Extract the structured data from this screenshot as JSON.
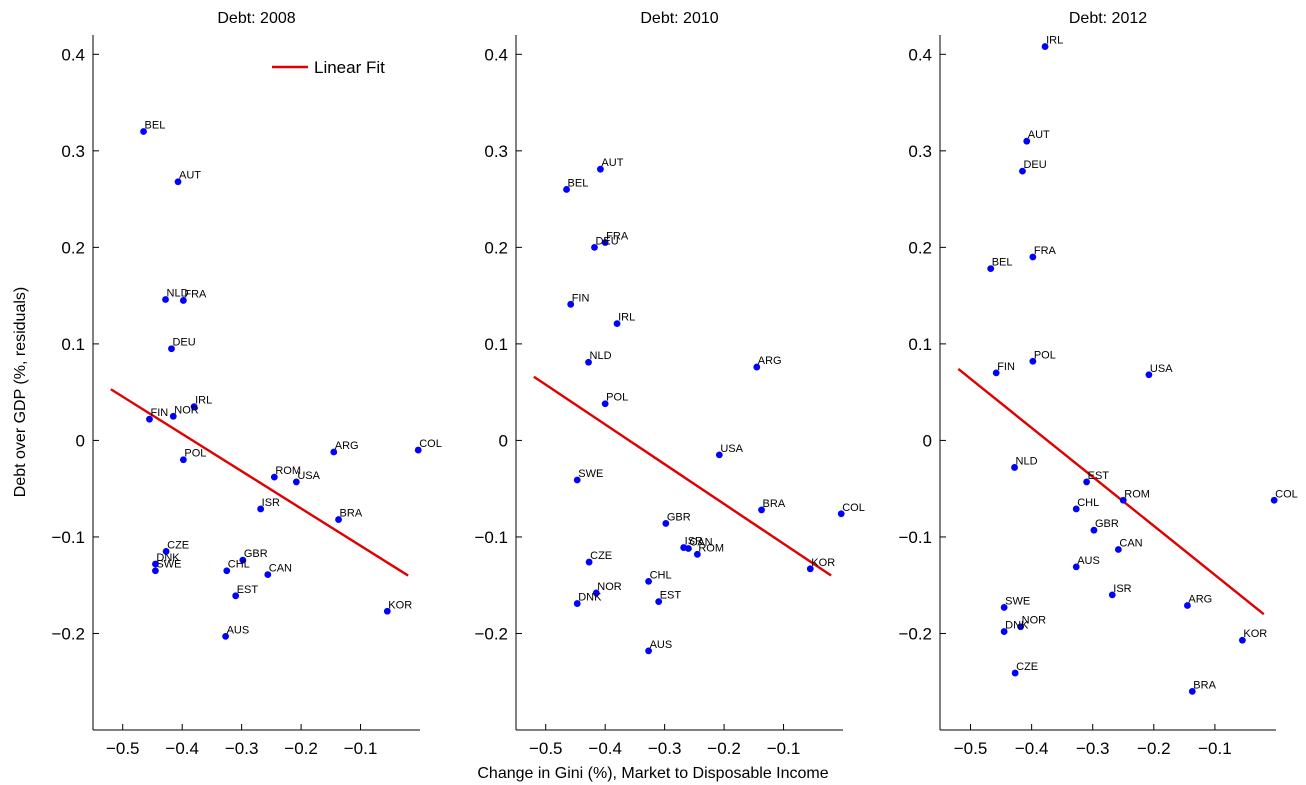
{
  "figure": {
    "ylabel": "Debt over GDP (%, residuals)",
    "xlabel": "Change in Gini (%), Market to Disposable Income",
    "legend_label": "Linear Fit",
    "colors": {
      "points": "#0000ff",
      "fit": "#e00000",
      "axis": "#000000"
    }
  },
  "chart_data": [
    {
      "type": "scatter",
      "title": "Debt: 2008",
      "xlim": [
        -0.55,
        0
      ],
      "ylim": [
        -0.3,
        0.42
      ],
      "xticks": [
        -0.5,
        -0.4,
        -0.3,
        -0.2,
        -0.1
      ],
      "xtick_labels": [
        "−0.5",
        "−0.4",
        "−0.3",
        "−0.2",
        "−0.1"
      ],
      "yticks": [
        -0.2,
        -0.1,
        0,
        0.1,
        0.2,
        0.3,
        0.4
      ],
      "ytick_labels": [
        "−0.2",
        "−0.1",
        "0",
        "0.1",
        "0.2",
        "0.3",
        "0.4"
      ],
      "show_ytick_labels": true,
      "legend": "top-right",
      "fit_line": {
        "x": [
          -0.52,
          -0.02
        ],
        "y": [
          0.053,
          -0.14
        ]
      },
      "points": [
        {
          "label": "BEL",
          "x": -0.465,
          "y": 0.32
        },
        {
          "label": "AUT",
          "x": -0.407,
          "y": 0.268
        },
        {
          "label": "NLD",
          "x": -0.428,
          "y": 0.146
        },
        {
          "label": "FRA",
          "x": -0.398,
          "y": 0.145
        },
        {
          "label": "DEU",
          "x": -0.418,
          "y": 0.095
        },
        {
          "label": "IRL",
          "x": -0.38,
          "y": 0.035
        },
        {
          "label": "NOR",
          "x": -0.415,
          "y": 0.025
        },
        {
          "label": "FIN",
          "x": -0.455,
          "y": 0.022
        },
        {
          "label": "POL",
          "x": -0.398,
          "y": -0.02
        },
        {
          "label": "ARG",
          "x": -0.145,
          "y": -0.012
        },
        {
          "label": "COL",
          "x": -0.003,
          "y": -0.01
        },
        {
          "label": "ROM",
          "x": -0.245,
          "y": -0.038
        },
        {
          "label": "USA",
          "x": -0.208,
          "y": -0.043
        },
        {
          "label": "ISR",
          "x": -0.268,
          "y": -0.071
        },
        {
          "label": "BRA",
          "x": -0.137,
          "y": -0.082
        },
        {
          "label": "CZE",
          "x": -0.427,
          "y": -0.115
        },
        {
          "label": "DNK",
          "x": -0.445,
          "y": -0.128
        },
        {
          "label": "SWE",
          "x": -0.445,
          "y": -0.135
        },
        {
          "label": "GBR",
          "x": -0.298,
          "y": -0.124
        },
        {
          "label": "CHL",
          "x": -0.325,
          "y": -0.135
        },
        {
          "label": "CAN",
          "x": -0.256,
          "y": -0.139
        },
        {
          "label": "EST",
          "x": -0.31,
          "y": -0.161
        },
        {
          "label": "KOR",
          "x": -0.055,
          "y": -0.177
        },
        {
          "label": "AUS",
          "x": -0.327,
          "y": -0.203
        }
      ]
    },
    {
      "type": "scatter",
      "title": "Debt: 2010",
      "xlim": [
        -0.55,
        0
      ],
      "ylim": [
        -0.3,
        0.42
      ],
      "xticks": [
        -0.5,
        -0.4,
        -0.3,
        -0.2,
        -0.1
      ],
      "xtick_labels": [
        "−0.5",
        "−0.4",
        "−0.3",
        "−0.2",
        "−0.1"
      ],
      "yticks": [
        -0.2,
        -0.1,
        0,
        0.1,
        0.2,
        0.3,
        0.4
      ],
      "ytick_labels": [
        "−0.2",
        "−0.1",
        "0",
        "0.1",
        "0.2",
        "0.3",
        "0.4"
      ],
      "show_ytick_labels": true,
      "legend": "",
      "fit_line": {
        "x": [
          -0.52,
          -0.02
        ],
        "y": [
          0.066,
          -0.14
        ]
      },
      "points": [
        {
          "label": "AUT",
          "x": -0.408,
          "y": 0.281
        },
        {
          "label": "BEL",
          "x": -0.465,
          "y": 0.26
        },
        {
          "label": "FRA",
          "x": -0.4,
          "y": 0.205
        },
        {
          "label": "DEU",
          "x": -0.418,
          "y": 0.2
        },
        {
          "label": "FIN",
          "x": -0.458,
          "y": 0.141
        },
        {
          "label": "IRL",
          "x": -0.38,
          "y": 0.121
        },
        {
          "label": "NLD",
          "x": -0.428,
          "y": 0.081
        },
        {
          "label": "ARG",
          "x": -0.145,
          "y": 0.076
        },
        {
          "label": "POL",
          "x": -0.4,
          "y": 0.038
        },
        {
          "label": "USA",
          "x": -0.208,
          "y": -0.015
        },
        {
          "label": "SWE",
          "x": -0.447,
          "y": -0.041
        },
        {
          "label": "BRA",
          "x": -0.137,
          "y": -0.072
        },
        {
          "label": "COL",
          "x": -0.003,
          "y": -0.076
        },
        {
          "label": "GBR",
          "x": -0.298,
          "y": -0.086
        },
        {
          "label": "ISR",
          "x": -0.268,
          "y": -0.111
        },
        {
          "label": "CAN",
          "x": -0.26,
          "y": -0.112
        },
        {
          "label": "ROM",
          "x": -0.245,
          "y": -0.118
        },
        {
          "label": "CZE",
          "x": -0.427,
          "y": -0.126
        },
        {
          "label": "KOR",
          "x": -0.055,
          "y": -0.133
        },
        {
          "label": "CHL",
          "x": -0.327,
          "y": -0.146
        },
        {
          "label": "NOR",
          "x": -0.415,
          "y": -0.158
        },
        {
          "label": "DNK",
          "x": -0.447,
          "y": -0.169
        },
        {
          "label": "EST",
          "x": -0.31,
          "y": -0.167
        },
        {
          "label": "AUS",
          "x": -0.327,
          "y": -0.218
        }
      ]
    },
    {
      "type": "scatter",
      "title": "Debt: 2012",
      "xlim": [
        -0.55,
        0
      ],
      "ylim": [
        -0.3,
        0.42
      ],
      "xticks": [
        -0.5,
        -0.4,
        -0.3,
        -0.2,
        -0.1
      ],
      "xtick_labels": [
        "−0.5",
        "−0.4",
        "−0.3",
        "−0.2",
        "−0.1"
      ],
      "yticks": [
        -0.2,
        -0.1,
        0,
        0.1,
        0.2,
        0.3,
        0.4
      ],
      "ytick_labels": [
        "−0.2",
        "−0.1",
        "0",
        "0.1",
        "0.2",
        "0.3",
        "0.4"
      ],
      "show_ytick_labels": true,
      "legend": "",
      "fit_line": {
        "x": [
          -0.52,
          -0.02
        ],
        "y": [
          0.074,
          -0.18
        ]
      },
      "points": [
        {
          "label": "IRL",
          "x": -0.378,
          "y": 0.408
        },
        {
          "label": "AUT",
          "x": -0.408,
          "y": 0.31
        },
        {
          "label": "DEU",
          "x": -0.415,
          "y": 0.279
        },
        {
          "label": "FRA",
          "x": -0.398,
          "y": 0.19
        },
        {
          "label": "BEL",
          "x": -0.467,
          "y": 0.178
        },
        {
          "label": "POL",
          "x": -0.398,
          "y": 0.082
        },
        {
          "label": "FIN",
          "x": -0.458,
          "y": 0.07
        },
        {
          "label": "USA",
          "x": -0.208,
          "y": 0.068
        },
        {
          "label": "NLD",
          "x": -0.428,
          "y": -0.028
        },
        {
          "label": "EST",
          "x": -0.31,
          "y": -0.043
        },
        {
          "label": "ROM",
          "x": -0.25,
          "y": -0.062
        },
        {
          "label": "COL",
          "x": -0.003,
          "y": -0.062
        },
        {
          "label": "CHL",
          "x": -0.327,
          "y": -0.071
        },
        {
          "label": "GBR",
          "x": -0.298,
          "y": -0.093
        },
        {
          "label": "CAN",
          "x": -0.258,
          "y": -0.113
        },
        {
          "label": "AUS",
          "x": -0.327,
          "y": -0.131
        },
        {
          "label": "ISR",
          "x": -0.268,
          "y": -0.16
        },
        {
          "label": "SWE",
          "x": -0.445,
          "y": -0.173
        },
        {
          "label": "ARG",
          "x": -0.145,
          "y": -0.171
        },
        {
          "label": "NOR",
          "x": -0.418,
          "y": -0.193
        },
        {
          "label": "DNK",
          "x": -0.445,
          "y": -0.198
        },
        {
          "label": "KOR",
          "x": -0.055,
          "y": -0.207
        },
        {
          "label": "CZE",
          "x": -0.427,
          "y": -0.241
        },
        {
          "label": "BRA",
          "x": -0.137,
          "y": -0.26
        }
      ]
    }
  ]
}
